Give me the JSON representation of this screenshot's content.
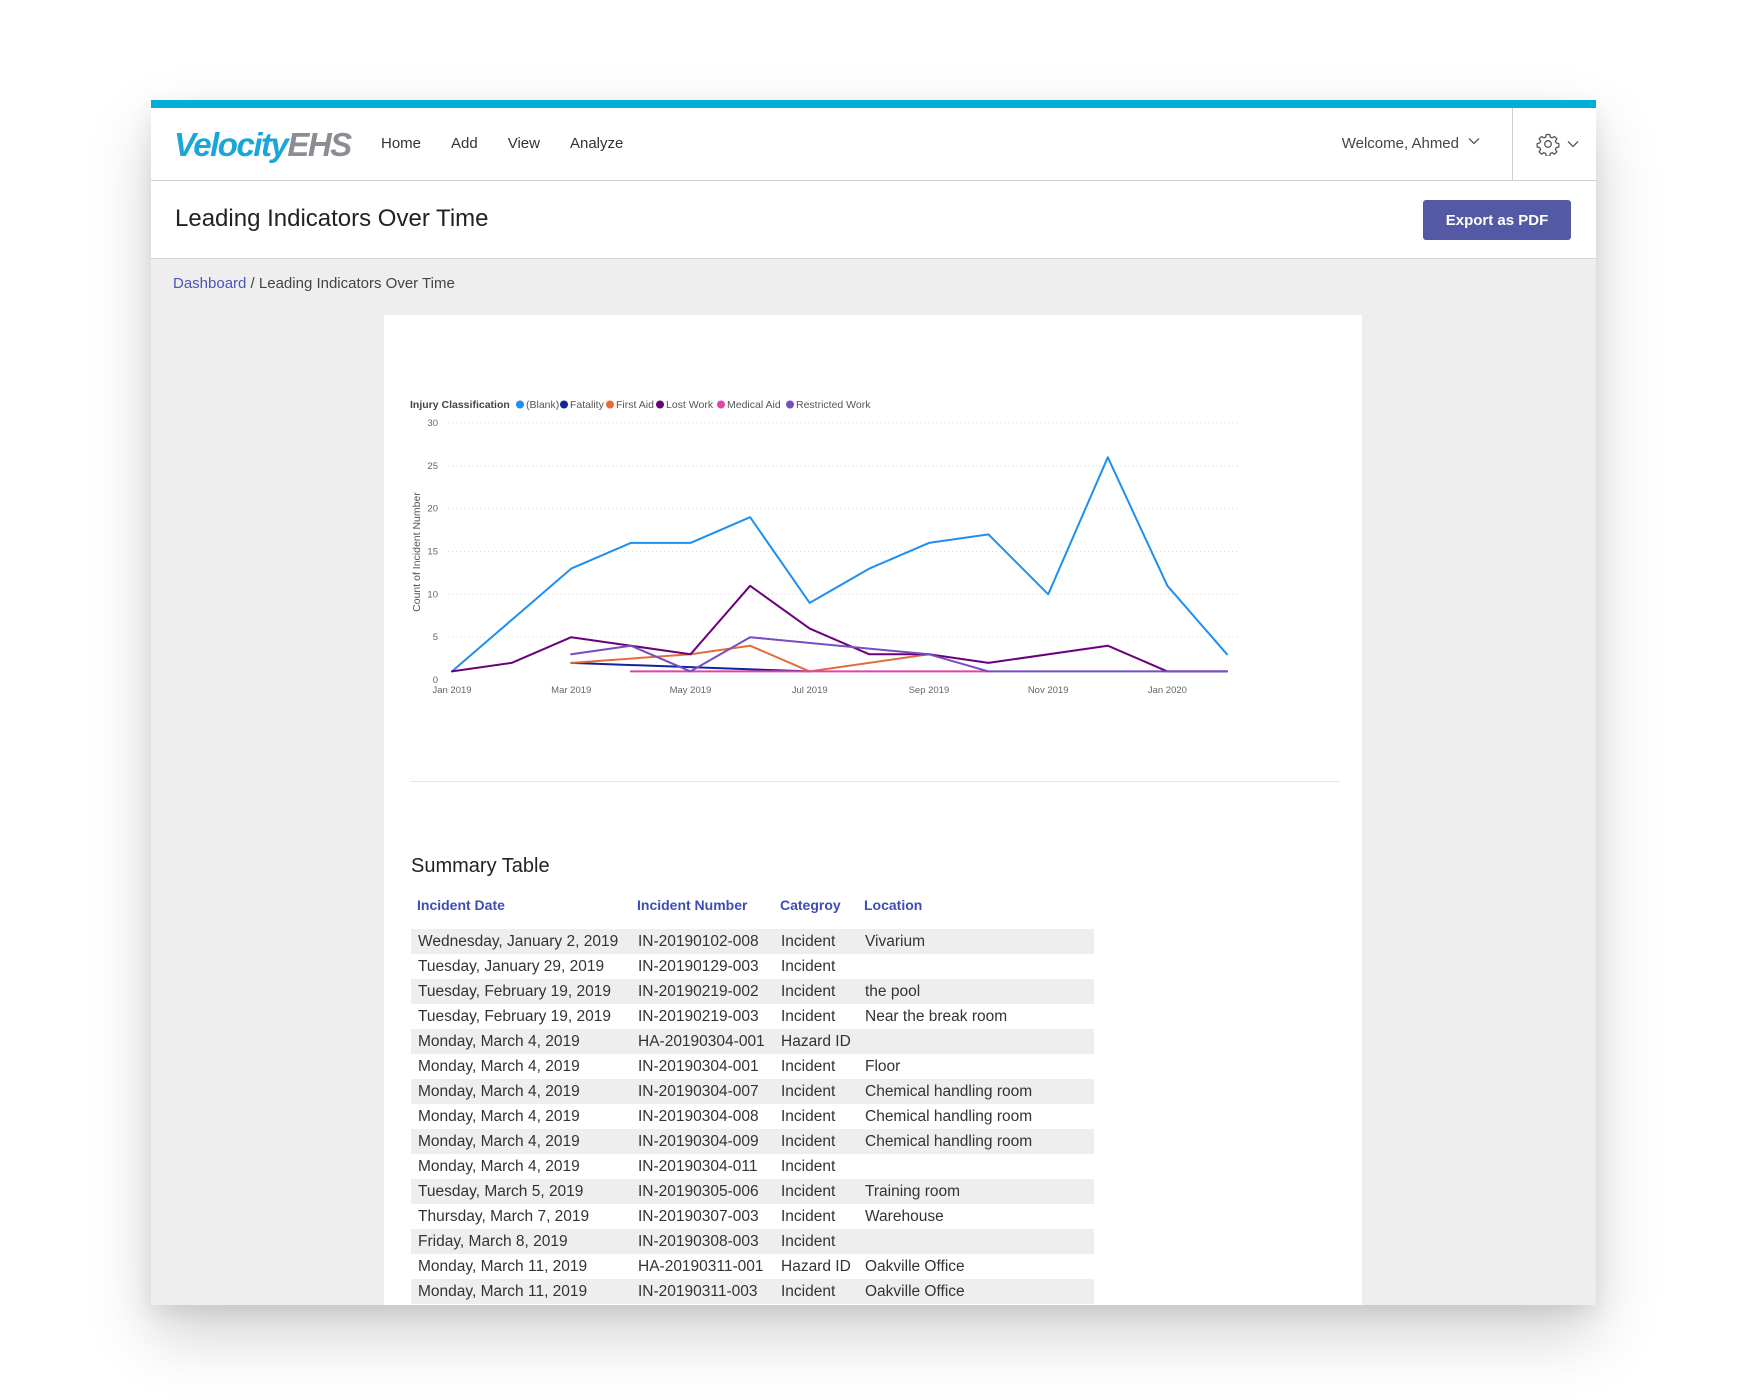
{
  "app": {
    "logo_part1": "Velocity",
    "logo_part2": "EHS",
    "nav": [
      {
        "label": "Home"
      },
      {
        "label": "Add"
      },
      {
        "label": "View"
      },
      {
        "label": "Analyze"
      }
    ],
    "welcome": "Welcome, Ahmed"
  },
  "page": {
    "title": "Leading Indicators Over Time",
    "export_label": "Export as PDF",
    "breadcrumb_link": "Dashboard",
    "breadcrumb_sep": " / ",
    "breadcrumb_current": "Leading Indicators Over Time"
  },
  "colors": {
    "accent": "#00aed6",
    "button": "#5459a6",
    "link": "#4a55b5"
  },
  "chart_data": {
    "type": "line",
    "title": "",
    "legend_title": "Injury Classification",
    "legend_position": "top-left",
    "ylabel": "Count of Incident Number",
    "xlabel": "",
    "ylim": [
      0,
      30
    ],
    "yticks": [
      0,
      5,
      10,
      15,
      20,
      25,
      30
    ],
    "xlim": [
      0,
      13
    ],
    "xticks": [
      {
        "label": "Jan 2019",
        "x": 0
      },
      {
        "label": "Mar 2019",
        "x": 2
      },
      {
        "label": "May 2019",
        "x": 4
      },
      {
        "label": "Jul 2019",
        "x": 6
      },
      {
        "label": "Sep 2019",
        "x": 8
      },
      {
        "label": "Nov 2019",
        "x": 10
      },
      {
        "label": "Jan 2020",
        "x": 12
      }
    ],
    "grid": true,
    "series": [
      {
        "name": "(Blank)",
        "color": "#1f8ff0",
        "points": [
          [
            0,
            1
          ],
          [
            1,
            7
          ],
          [
            2,
            13
          ],
          [
            3,
            16
          ],
          [
            4,
            16
          ],
          [
            5,
            19
          ],
          [
            6,
            9
          ],
          [
            7,
            13
          ],
          [
            8,
            16
          ],
          [
            9,
            17
          ],
          [
            10,
            10
          ],
          [
            11,
            26
          ],
          [
            12,
            11
          ],
          [
            13,
            3
          ]
        ]
      },
      {
        "name": "Fatality",
        "color": "#12239e",
        "points": [
          [
            2,
            2
          ],
          [
            6,
            1
          ]
        ]
      },
      {
        "name": "First Aid",
        "color": "#e66c37",
        "points": [
          [
            2,
            2
          ],
          [
            4,
            3
          ],
          [
            5,
            4
          ],
          [
            6,
            1
          ],
          [
            8,
            3
          ]
        ]
      },
      {
        "name": "Lost Work",
        "color": "#6b007b",
        "points": [
          [
            0,
            1
          ],
          [
            1,
            2
          ],
          [
            2,
            5
          ],
          [
            3,
            4
          ],
          [
            4,
            3
          ],
          [
            5,
            11
          ],
          [
            6,
            6
          ],
          [
            7,
            3
          ],
          [
            8,
            3
          ],
          [
            9,
            2
          ],
          [
            11,
            4
          ],
          [
            12,
            1
          ],
          [
            13,
            1
          ]
        ]
      },
      {
        "name": "Medical Aid",
        "color": "#e044a7",
        "points": [
          [
            3,
            1
          ],
          [
            9,
            1
          ]
        ]
      },
      {
        "name": "Restricted Work",
        "color": "#744ec2",
        "points": [
          [
            2,
            3
          ],
          [
            3,
            4
          ],
          [
            4,
            1
          ],
          [
            5,
            5
          ],
          [
            8,
            3
          ],
          [
            9,
            1
          ],
          [
            13,
            1
          ]
        ]
      }
    ]
  },
  "table": {
    "title": "Summary Table",
    "columns": [
      "Incident Date",
      "Incident Number",
      "Categroy",
      "Location"
    ],
    "rows": [
      [
        "Wednesday, January 2, 2019",
        "IN-20190102-008",
        "Incident",
        "Vivarium"
      ],
      [
        "Tuesday, January 29, 2019",
        "IN-20190129-003",
        "Incident",
        ""
      ],
      [
        "Tuesday, February 19, 2019",
        "IN-20190219-002",
        "Incident",
        "the pool"
      ],
      [
        "Tuesday, February 19, 2019",
        "IN-20190219-003",
        "Incident",
        "Near the break room"
      ],
      [
        "Monday, March 4, 2019",
        "HA-20190304-001",
        "Hazard ID",
        ""
      ],
      [
        "Monday, March 4, 2019",
        "IN-20190304-001",
        "Incident",
        "Floor"
      ],
      [
        "Monday, March 4, 2019",
        "IN-20190304-007",
        "Incident",
        "Chemical handling room"
      ],
      [
        "Monday, March 4, 2019",
        "IN-20190304-008",
        "Incident",
        "Chemical handling room"
      ],
      [
        "Monday, March 4, 2019",
        "IN-20190304-009",
        "Incident",
        "Chemical handling room"
      ],
      [
        "Monday, March 4, 2019",
        "IN-20190304-011",
        "Incident",
        ""
      ],
      [
        "Tuesday, March 5, 2019",
        "IN-20190305-006",
        "Incident",
        "Training room"
      ],
      [
        "Thursday, March 7, 2019",
        "IN-20190307-003",
        "Incident",
        "Warehouse"
      ],
      [
        "Friday, March 8, 2019",
        "IN-20190308-003",
        "Incident",
        ""
      ],
      [
        "Monday, March 11, 2019",
        "HA-20190311-001",
        "Hazard ID",
        "Oakville Office"
      ],
      [
        "Monday, March 11, 2019",
        "IN-20190311-003",
        "Incident",
        "Oakville Office"
      ]
    ]
  }
}
